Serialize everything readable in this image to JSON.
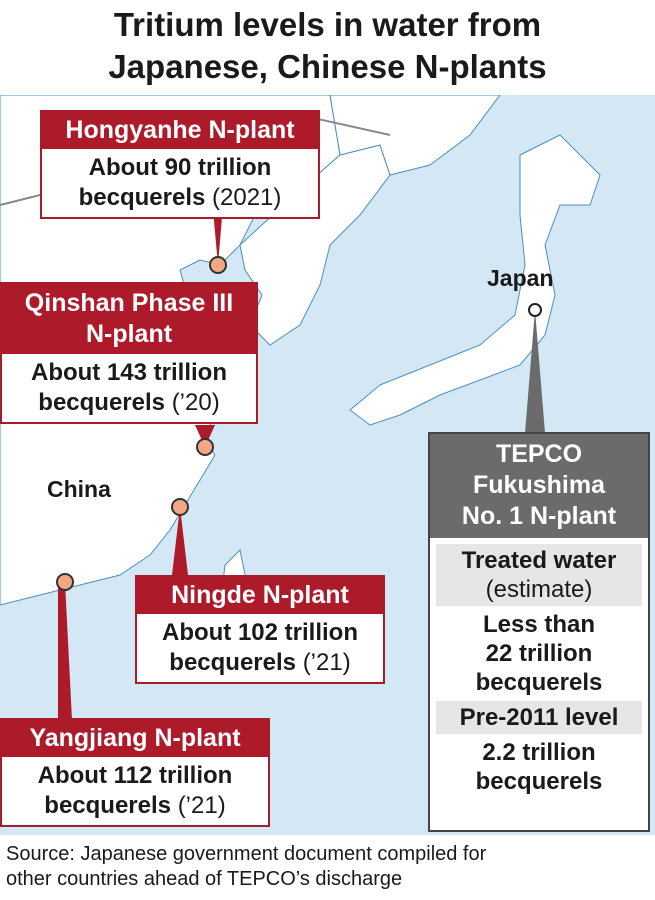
{
  "title": [
    "Tritium levels in water from",
    "Japanese, Chinese N-plants"
  ],
  "map_labels": {
    "japan": "Japan",
    "china": "China"
  },
  "plants": [
    {
      "name": "Hongyanhe N-plant",
      "value": "About 90 trillion",
      "unit": "becquerels",
      "year": "(2021)"
    },
    {
      "name": "Qinshan Phase III N-plant",
      "value": "About 143 trillion",
      "unit": "becquerels",
      "year": "(’20)"
    },
    {
      "name": "Ningde N-plant",
      "value": "About 102 trillion",
      "unit": "becquerels",
      "year": "(’21)"
    },
    {
      "name": "Yangjiang N-plant",
      "value": "About 112 trillion",
      "unit": "becquerels",
      "year": "(’21)"
    }
  ],
  "tepco": {
    "name": [
      "TEPCO",
      "Fukushima",
      "No. 1 N-plant"
    ],
    "treated_label": "Treated water",
    "treated_note": "(estimate)",
    "treated_value": [
      "Less than",
      "22 trillion",
      "becquerels"
    ],
    "pre_label": "Pre-2011 level",
    "pre_value": [
      "2.2 trillion",
      "becquerels"
    ]
  },
  "source": [
    "Source: Japanese government document compiled for",
    "other countries ahead of TEPCO’s discharge"
  ],
  "colors": {
    "sea": "#d3e8f4",
    "land": "#ffffff",
    "china_box": "#ad1a2a",
    "tepco_box": "#6b6b6b",
    "plant_dot": "#f2a882"
  }
}
